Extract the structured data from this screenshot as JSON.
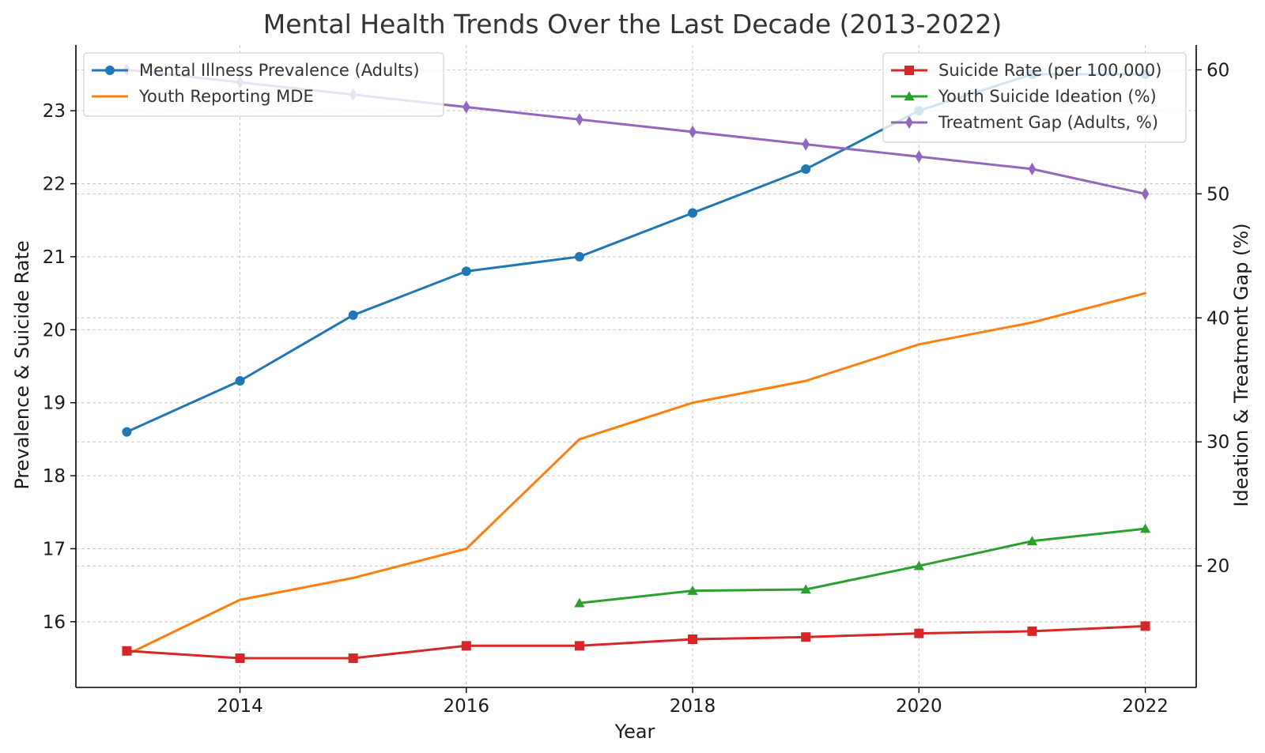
{
  "chart_data": {
    "type": "line",
    "title": "Mental Health Trends Over the Last Decade (2013-2022)",
    "xlabel": "Year",
    "ylabel_left": "Prevalence & Suicide Rate",
    "ylabel_right": "Ideation & Treatment Gap (%)",
    "xlim": [
      2012.55,
      2022.45
    ],
    "ylim_left": [
      15.1,
      23.9
    ],
    "ylim_right": [
      10.2,
      62
    ],
    "x_ticks": [
      2014,
      2016,
      2018,
      2020,
      2022
    ],
    "y_left_ticks": [
      16,
      17,
      18,
      19,
      20,
      21,
      22,
      23
    ],
    "y_right_ticks": [
      20,
      30,
      40,
      50,
      60
    ],
    "grid": true,
    "legend_left_position": "top-left",
    "legend_right_position": "top-right",
    "series": [
      {
        "name": "Mental Illness Prevalence (Adults)",
        "axis": "left",
        "color": "#1f77b4",
        "marker": "circle",
        "x": [
          2013,
          2014,
          2015,
          2016,
          2017,
          2018,
          2019,
          2020,
          2021,
          2022
        ],
        "values": [
          18.6,
          19.3,
          20.2,
          20.8,
          21.0,
          21.6,
          22.2,
          23.0,
          23.5,
          23.5
        ]
      },
      {
        "name": "Youth Reporting MDE",
        "axis": "left",
        "color": "#ff7f0e",
        "marker": "none",
        "x": [
          2013,
          2014,
          2015,
          2016,
          2017,
          2018,
          2019,
          2020,
          2021,
          2022
        ],
        "values": [
          15.55,
          16.3,
          16.6,
          17.0,
          18.5,
          19.0,
          19.3,
          19.8,
          20.1,
          20.5
        ]
      },
      {
        "name": "Suicide Rate (per 100,000)",
        "axis": "left",
        "color": "#d62728",
        "marker": "square",
        "x": [
          2013,
          2014,
          2015,
          2016,
          2017,
          2018,
          2019,
          2020,
          2021,
          2022
        ],
        "values": [
          15.6,
          15.5,
          15.5,
          15.67,
          15.67,
          15.76,
          15.79,
          15.84,
          15.87,
          15.94
        ]
      },
      {
        "name": "Youth Suicide Ideation (%)",
        "axis": "right",
        "color": "#2ca02c",
        "marker": "triangle",
        "x": [
          2017,
          2018,
          2019,
          2020,
          2021,
          2022
        ],
        "values": [
          17.0,
          18.0,
          18.1,
          20.0,
          22.0,
          23.0
        ]
      },
      {
        "name": "Treatment Gap (Adults, %)",
        "axis": "right",
        "color": "#9467bd",
        "marker": "diamond",
        "x": [
          2013,
          2014,
          2015,
          2016,
          2017,
          2018,
          2019,
          2020,
          2021,
          2022
        ],
        "values": [
          60,
          59,
          58,
          57,
          56,
          55,
          54,
          53,
          52,
          50
        ]
      }
    ]
  }
}
